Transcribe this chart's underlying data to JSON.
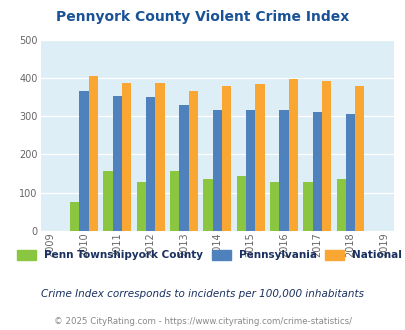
{
  "title": "Pennyork County Violent Crime Index",
  "all_years": [
    "2009",
    "2010",
    "2011",
    "2012",
    "2013",
    "2014",
    "2015",
    "2016",
    "2017",
    "2018",
    "2019"
  ],
  "data_years": [
    2010,
    2011,
    2012,
    2013,
    2014,
    2015,
    2016,
    2017,
    2018
  ],
  "penn_township": [
    75,
    157,
    127,
    157,
    135,
    143,
    128,
    128,
    137
  ],
  "pennsylvania": [
    365,
    352,
    349,
    328,
    315,
    315,
    315,
    312,
    306
  ],
  "national": [
    405,
    387,
    387,
    367,
    378,
    383,
    397,
    393,
    379
  ],
  "penn_color": "#8ac63f",
  "pa_color": "#4f81bd",
  "national_color": "#faa632",
  "bg_color": "#ddeef6",
  "ylim": [
    0,
    500
  ],
  "yticks": [
    0,
    100,
    200,
    300,
    400,
    500
  ],
  "legend_labels": [
    "Penn Townshipyork County",
    "Pennsylvania",
    "National"
  ],
  "footnote1": "Crime Index corresponds to incidents per 100,000 inhabitants",
  "footnote2": "© 2025 CityRating.com - https://www.cityrating.com/crime-statistics/",
  "title_color": "#1a5296",
  "legend_text_color": "#1a3060",
  "footnote1_color": "#1a3060",
  "footnote2_color": "#888888"
}
